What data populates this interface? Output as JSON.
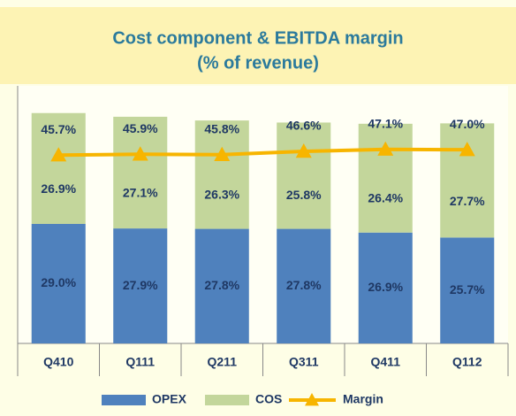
{
  "chart_data": {
    "type": "bar",
    "stacked": true,
    "title": "Cost component & EBITDA margin",
    "subtitle": "(% of revenue)",
    "categories": [
      "Q410",
      "Q111",
      "Q211",
      "Q311",
      "Q411",
      "Q112"
    ],
    "series": [
      {
        "name": "OPEX",
        "type": "bar",
        "color": "#4f81bd",
        "values": [
          29.0,
          27.9,
          27.8,
          27.8,
          26.9,
          25.7
        ],
        "value_labels": [
          "29.0%",
          "27.9%",
          "27.8%",
          "27.8%",
          "26.9%",
          "25.7%"
        ]
      },
      {
        "name": "COS",
        "type": "bar",
        "color": "#c3d69b",
        "values": [
          26.9,
          27.1,
          26.3,
          25.8,
          26.4,
          27.7
        ],
        "value_labels": [
          "26.9%",
          "27.1%",
          "26.3%",
          "25.8%",
          "26.4%",
          "27.7%"
        ]
      },
      {
        "name": "Margin",
        "type": "line",
        "color": "#f7b500",
        "values": [
          45.7,
          45.9,
          45.8,
          46.6,
          47.1,
          47.0
        ],
        "value_labels": [
          "45.7%",
          "45.9%",
          "45.8%",
          "46.6%",
          "47.1%",
          "47.0%"
        ]
      }
    ],
    "ylim": [
      0,
      62.5
    ],
    "legend": "bottom"
  }
}
